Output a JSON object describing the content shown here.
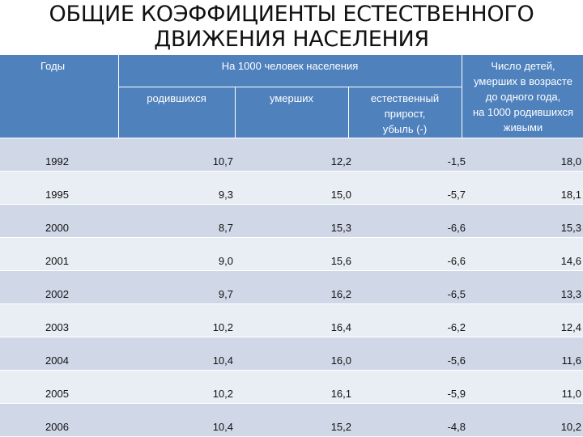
{
  "title": {
    "line1": "ОБЩИЕ КОЭФФИЦИЕНТЫ ЕСТЕСТВЕННОГО",
    "line2": "ДВИЖЕНИЯ НАСЕЛЕНИЯ"
  },
  "table": {
    "header": {
      "years": "Годы",
      "per_1000": "На 1000 человек населения",
      "born": "родившихся",
      "died": "умерших",
      "natural_line1": "естественный",
      "natural_line2": "прирост,",
      "natural_line3": "убыль (-)",
      "infant_line1": "Число детей,",
      "infant_line2": "умерших в возрасте",
      "infant_line3": "до одного года,",
      "infant_line4": "на 1000 родившихся",
      "infant_line5": "живыми"
    },
    "rows": [
      {
        "year": "1992",
        "born": "10,7",
        "died": "12,2",
        "natural": "-1,5",
        "infant": "18,0"
      },
      {
        "year": "1995",
        "born": "9,3",
        "died": "15,0",
        "natural": "-5,7",
        "infant": "18,1"
      },
      {
        "year": "2000",
        "born": "8,7",
        "died": "15,3",
        "natural": "-6,6",
        "infant": "15,3"
      },
      {
        "year": "2001",
        "born": "9,0",
        "died": "15,6",
        "natural": "-6,6",
        "infant": "14,6"
      },
      {
        "year": "2002",
        "born": "9,7",
        "died": "16,2",
        "natural": "-6,5",
        "infant": "13,3"
      },
      {
        "year": "2003",
        "born": "10,2",
        "died": "16,4",
        "natural": "-6,2",
        "infant": "12,4"
      },
      {
        "year": "2004",
        "born": "10,4",
        "died": "16,0",
        "natural": "-5,6",
        "infant": "11,6"
      },
      {
        "year": "2005",
        "born": "10,2",
        "died": "16,1",
        "natural": "-5,9",
        "infant": "11,0"
      },
      {
        "year": "2006",
        "born": "10,4",
        "died": "15,2",
        "natural": "-4,8",
        "infant": "10,2"
      }
    ]
  },
  "colors": {
    "header_bg": "#4f81bd",
    "row_dark": "#d0d8e8",
    "row_light": "#e9edf4"
  }
}
